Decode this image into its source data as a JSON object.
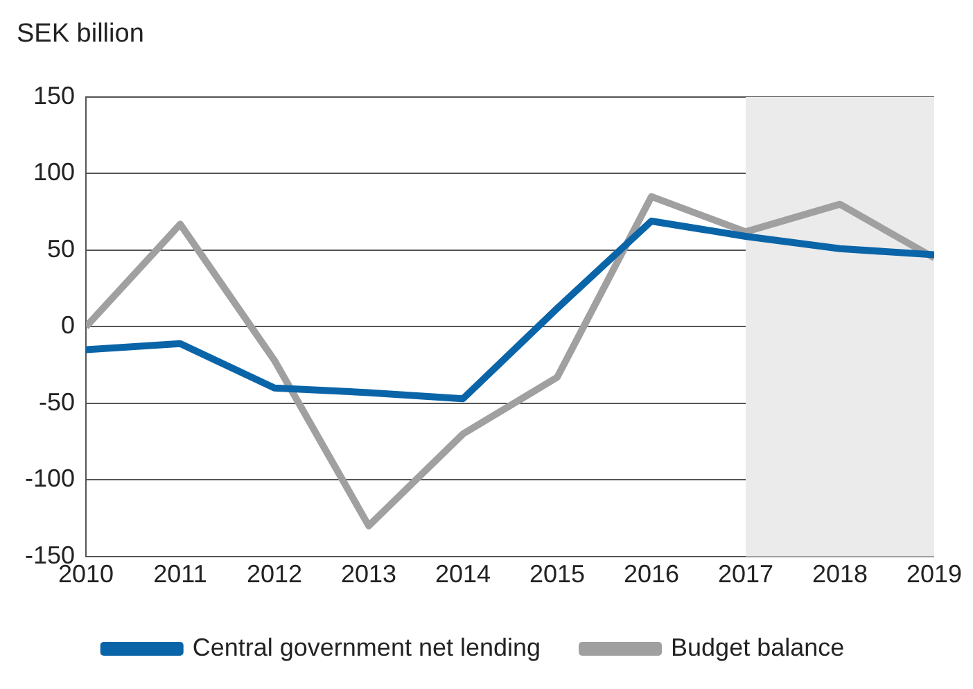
{
  "chart_data": {
    "type": "line",
    "ylabel": "SEK billion",
    "x": [
      2010,
      2011,
      2012,
      2013,
      2014,
      2015,
      2016,
      2017,
      2018,
      2019
    ],
    "series": [
      {
        "name": "Central government net lending",
        "color": "#0a64a8",
        "values": [
          -15,
          -11,
          -40,
          -43,
          -47,
          12,
          69,
          59,
          51,
          47
        ]
      },
      {
        "name": "Budget balance",
        "color": "#a0a0a0",
        "values": [
          0,
          67,
          -22,
          -130,
          -70,
          -33,
          85,
          62,
          80,
          45
        ]
      }
    ],
    "xlim": [
      2010,
      2019
    ],
    "xticks": [
      2010,
      2011,
      2012,
      2013,
      2014,
      2015,
      2016,
      2017,
      2018,
      2019
    ],
    "ylim": [
      -150,
      150
    ],
    "yticks": [
      -150,
      -100,
      -50,
      0,
      50,
      100,
      150
    ],
    "bands": [
      {
        "axis": "x",
        "from": 2017,
        "to": 2019,
        "color": "#ebebeb"
      }
    ],
    "grid": "y",
    "legend": "bottom",
    "marker": "none",
    "line_style": "solid"
  }
}
